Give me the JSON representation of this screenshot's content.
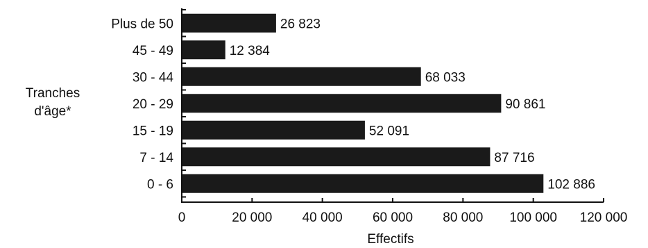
{
  "chart_data": {
    "type": "bar",
    "orientation": "horizontal",
    "categories": [
      "Plus de 50",
      "45 - 49",
      "30 - 44",
      "20 - 29",
      "15 - 19",
      "7 - 14",
      "0 - 6"
    ],
    "values": [
      26823,
      12384,
      68033,
      90861,
      52091,
      87716,
      102886
    ],
    "value_labels": [
      "26 823",
      "12 384",
      "68 033",
      "90 861",
      "52 091",
      "87 716",
      "102 886"
    ],
    "xlabel": "Effectifs",
    "ylabel_lines": [
      "Tranches",
      "d'âge*"
    ],
    "xlim": [
      0,
      120000
    ],
    "x_ticks": [
      0,
      20000,
      40000,
      60000,
      80000,
      100000,
      120000
    ],
    "x_tick_labels": [
      "0",
      "20 000",
      "40 000",
      "60 000",
      "80 000",
      "100 000",
      "120 000"
    ],
    "grid": false,
    "legend": "none",
    "bar_color": "#1a1a1a"
  }
}
